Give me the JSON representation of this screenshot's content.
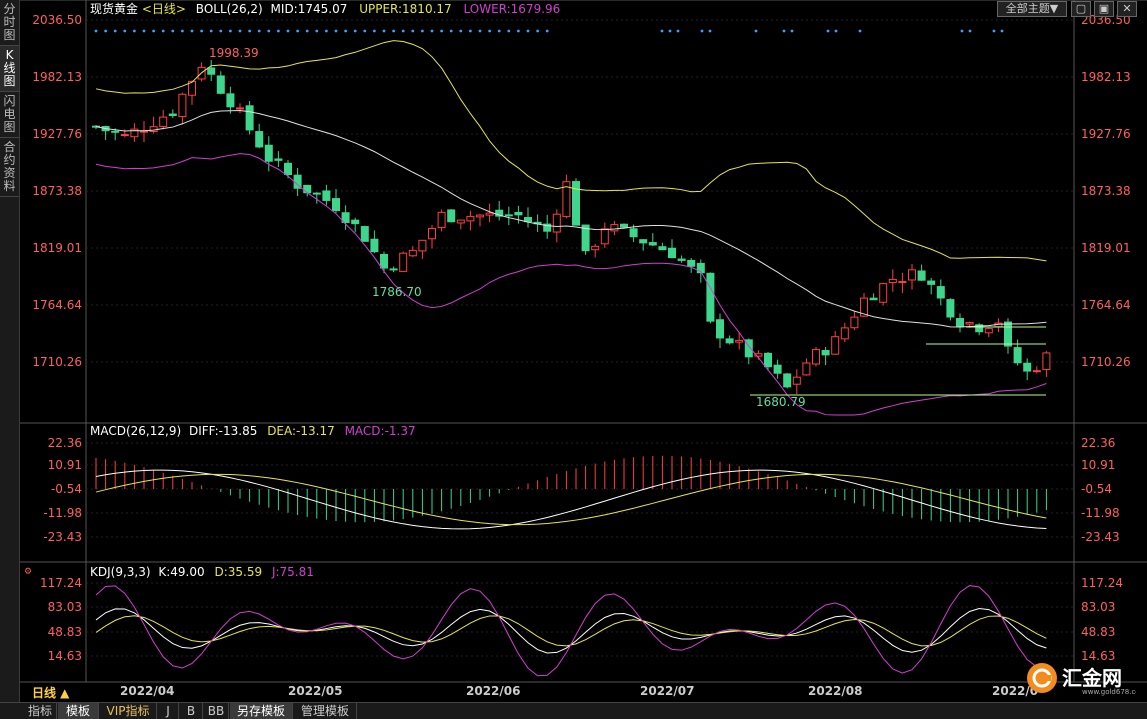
{
  "sidebar": {
    "tabs": [
      {
        "label": "分时图",
        "active": false
      },
      {
        "label": "K线图",
        "active": true
      },
      {
        "label": "闪电图",
        "active": false
      },
      {
        "label": "合约资料",
        "active": false
      }
    ]
  },
  "header": {
    "instrument": "现货黄金",
    "period": "<日线>",
    "indicator": "BOLL(26,2)",
    "mid": "MID:1745.07",
    "upper": "UPPER:1810.17",
    "lower": "LOWER:1679.96",
    "theme_button": "全部主题▼"
  },
  "main_panel": {
    "y_labels": [
      "2036.50",
      "1982.13",
      "1927.76",
      "1873.38",
      "1819.01",
      "1764.64",
      "1710.26"
    ],
    "annotations": {
      "high": "1998.39",
      "low1": "1786.70",
      "low2": "1680.79"
    }
  },
  "macd_panel": {
    "title": "MACD(26,12,9)",
    "diff": "DIFF:-13.85",
    "dea": "DEA:-13.17",
    "macd": "MACD:-1.37",
    "y_labels": [
      "22.36",
      "10.91",
      "-0.54",
      "-11.98",
      "-23.43"
    ]
  },
  "kdj_panel": {
    "title": "KDJ(9,3,3)",
    "k": "K:49.00",
    "d": "D:35.59",
    "j": "J:75.81",
    "y_labels": [
      "117.24",
      "83.03",
      "48.83",
      "14.63"
    ]
  },
  "x_axis": {
    "period_button": "日线 ▲",
    "labels": [
      "2022/04",
      "2022/05",
      "2022/06",
      "2022/07",
      "2022/08",
      "2022/0"
    ]
  },
  "bottom_bar": {
    "tabs": [
      {
        "label": "指标",
        "active": false
      },
      {
        "label": "模板",
        "active": true
      },
      {
        "label": "VIP指标",
        "active": false
      },
      {
        "label": "J",
        "active": false
      },
      {
        "label": "B",
        "active": false
      },
      {
        "label": "BB",
        "active": false
      },
      {
        "label": "另存模板",
        "active": true
      },
      {
        "label": "管理模板",
        "active": false
      }
    ]
  },
  "logo": {
    "text": "汇金网",
    "url_text": "www.gold678.com"
  },
  "colors": {
    "up": "#ff4040",
    "down": "#3dd68c",
    "mid": "#e0e0e0",
    "upper": "#e6e64a",
    "lower": "#d040d0"
  }
}
